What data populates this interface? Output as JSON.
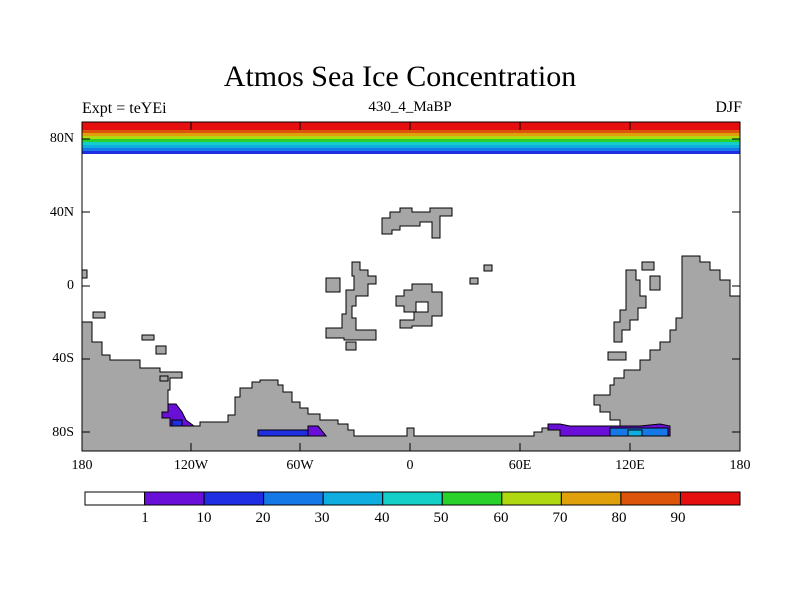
{
  "map": {
    "title": "Atmos Sea Ice Concentration",
    "experiment": "Expt = teYEi",
    "subtitle": "430_4_MaBP",
    "season": "DJF",
    "y_axis_labels": [
      "80N",
      "40N",
      "0",
      "40S",
      "80S"
    ],
    "x_axis_labels": [
      "180",
      "120W",
      "60W",
      "0",
      "60E",
      "120E",
      "180"
    ],
    "land_color": "#a6a6a6",
    "outline_color": "#000000"
  },
  "colorbar": {
    "levels": [
      "1",
      "10",
      "20",
      "30",
      "40",
      "50",
      "60",
      "70",
      "80",
      "90"
    ],
    "colors": [
      "#ffffff",
      "#6a0fd8",
      "#1f2ee3",
      "#1478e6",
      "#10aee0",
      "#14cfc8",
      "#2ad12a",
      "#b0d811",
      "#e0a00c",
      "#dc5409",
      "#e60f0f"
    ]
  },
  "arctic_bands": [
    "#e60f0f",
    "#dc5409",
    "#e0a00c",
    "#b0d811",
    "#2ad12a",
    "#14cfc8",
    "#10aee0",
    "#1478e6",
    "#1f2ee3"
  ]
}
